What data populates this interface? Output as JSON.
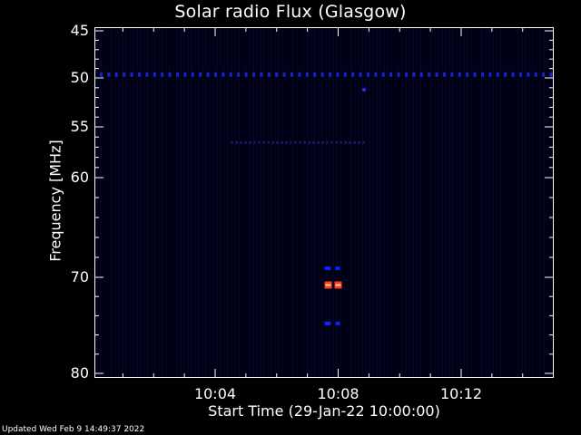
{
  "chart_data": {
    "type": "heatmap",
    "title": "Solar radio Flux (Glasgow)",
    "xlabel": "Start Time (29-Jan-22 10:00:00)",
    "ylabel": "Frequency [MHz]",
    "x_range_minutes": [
      10.0,
      10.25
    ],
    "x_ticks": [
      "10:04",
      "10:08",
      "10:12"
    ],
    "y_range": [
      45,
      80
    ],
    "y_ticks": [
      45,
      50,
      55,
      60,
      70,
      80
    ],
    "y_scale": "nonlinear",
    "background_color": "#000014",
    "features": [
      {
        "kind": "dotted-line",
        "freq_mhz": 49.6,
        "color": "#1a22cc"
      },
      {
        "kind": "faint-streak",
        "freq_mhz": 56.5,
        "color": "#15155a"
      },
      {
        "kind": "burst",
        "time": "10:08",
        "freq_mhz": 70.8,
        "colors": [
          "#ff3b1f",
          "#ffd0a0"
        ]
      },
      {
        "kind": "burst-edge",
        "time": "10:08",
        "freq_mhz": 69.1,
        "color": "#1020ff"
      },
      {
        "kind": "burst-edge",
        "time": "10:08",
        "freq_mhz": 74.8,
        "color": "#1020ff"
      }
    ]
  },
  "footer": "Updated Wed Feb  9 14:49:37 2022"
}
